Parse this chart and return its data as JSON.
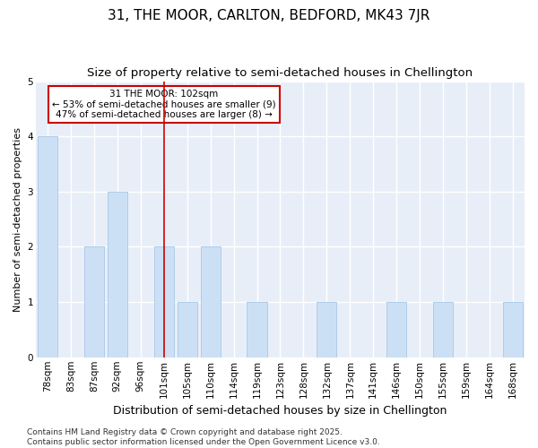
{
  "title": "31, THE MOOR, CARLTON, BEDFORD, MK43 7JR",
  "subtitle": "Size of property relative to semi-detached houses in Chellington",
  "xlabel": "Distribution of semi-detached houses by size in Chellington",
  "ylabel": "Number of semi-detached properties",
  "categories": [
    "78sqm",
    "83sqm",
    "87sqm",
    "92sqm",
    "96sqm",
    "101sqm",
    "105sqm",
    "110sqm",
    "114sqm",
    "119sqm",
    "123sqm",
    "128sqm",
    "132sqm",
    "137sqm",
    "141sqm",
    "146sqm",
    "150sqm",
    "155sqm",
    "159sqm",
    "164sqm",
    "168sqm"
  ],
  "values": [
    4,
    0,
    2,
    3,
    0,
    2,
    1,
    2,
    0,
    1,
    0,
    0,
    1,
    0,
    0,
    1,
    0,
    1,
    0,
    0,
    1
  ],
  "bar_color": "#cce0f5",
  "bar_edgecolor": "#b0cce8",
  "highlight_line_index": 5,
  "highlight_line_color": "#cc0000",
  "annotation_line1": "31 THE MOOR: 102sqm",
  "annotation_line2": "← 53% of semi-detached houses are smaller (9)",
  "annotation_line3": "47% of semi-detached houses are larger (8) →",
  "annotation_box_edgecolor": "#cc0000",
  "ylim": [
    0,
    5
  ],
  "yticks": [
    0,
    1,
    2,
    3,
    4,
    5
  ],
  "footnote": "Contains HM Land Registry data © Crown copyright and database right 2025.\nContains public sector information licensed under the Open Government Licence v3.0.",
  "fig_bg_color": "#ffffff",
  "plot_bg_color": "#e8eef8",
  "grid_color": "#ffffff",
  "title_fontsize": 11,
  "subtitle_fontsize": 9.5,
  "xlabel_fontsize": 9,
  "ylabel_fontsize": 8,
  "tick_fontsize": 7.5,
  "annotation_fontsize": 7.5,
  "footnote_fontsize": 6.5
}
